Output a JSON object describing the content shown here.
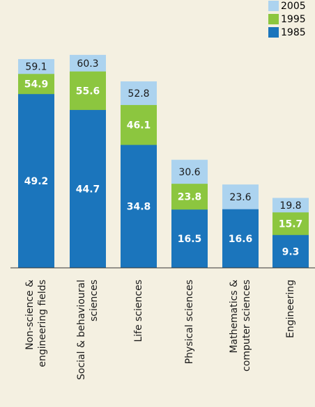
{
  "chart_data": {
    "type": "overlapping_bar",
    "categories": [
      "Non-science &\nengineering fields",
      "Social & behavioural\nsciences",
      "Life sciences",
      "Physical sciences",
      "Mathematics &\ncomputer sciences",
      "Engineering"
    ],
    "series": [
      {
        "name": "2005",
        "color": "#acd3ef",
        "values": [
          59.1,
          60.3,
          52.8,
          30.6,
          23.6,
          19.8
        ]
      },
      {
        "name": "1995",
        "color": "#8cc63f",
        "values": [
          54.9,
          55.6,
          46.1,
          23.8,
          null,
          15.7
        ]
      },
      {
        "name": "1985",
        "color": "#1b75bc",
        "values": [
          49.2,
          44.7,
          34.8,
          16.5,
          16.6,
          9.3
        ]
      }
    ],
    "ylim": [
      0,
      65
    ]
  }
}
